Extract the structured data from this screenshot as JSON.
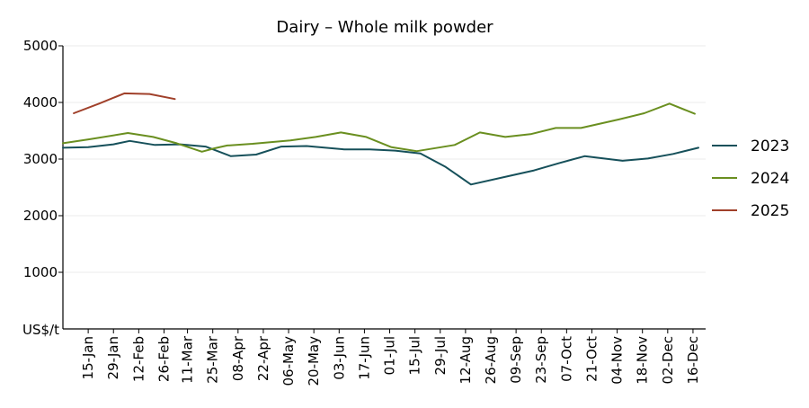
{
  "chart_data": {
    "type": "line",
    "title": "Dairy – Whole milk powder",
    "ylabel": "US$/t",
    "xlabel": "",
    "ylim": [
      0,
      5000
    ],
    "yticks": [
      1000,
      2000,
      3000,
      4000,
      5000
    ],
    "grid": true,
    "legend_position": "right",
    "x_ticks": [
      "15-Jan",
      "29-Jan",
      "12-Feb",
      "26-Feb",
      "11-Mar",
      "25-Mar",
      "08-Apr",
      "22-Apr",
      "06-May",
      "20-May",
      "03-Jun",
      "17-Jun",
      "01-Jul",
      "15-Jul",
      "29-Jul",
      "12-Aug",
      "26-Aug",
      "09-Sep",
      "23-Sep",
      "07-Oct",
      "21-Oct",
      "04-Nov",
      "18-Nov",
      "02-Dec",
      "16-Dec"
    ],
    "series": [
      {
        "name": "2023",
        "color": "#16505a",
        "points": [
          [
            "01-Jan",
            3200
          ],
          [
            "15-Jan",
            3210
          ],
          [
            "29-Jan",
            3260
          ],
          [
            "07-Feb",
            3320
          ],
          [
            "21-Feb",
            3250
          ],
          [
            "07-Mar",
            3260
          ],
          [
            "21-Mar",
            3220
          ],
          [
            "04-Apr",
            3050
          ],
          [
            "18-Apr",
            3080
          ],
          [
            "02-May",
            3220
          ],
          [
            "16-May",
            3230
          ],
          [
            "06-Jun",
            3170
          ],
          [
            "20-Jun",
            3170
          ],
          [
            "04-Jul",
            3150
          ],
          [
            "18-Jul",
            3100
          ],
          [
            "01-Aug",
            2860
          ],
          [
            "15-Aug",
            2550
          ],
          [
            "05-Sep",
            2700
          ],
          [
            "19-Sep",
            2800
          ],
          [
            "03-Oct",
            2930
          ],
          [
            "17-Oct",
            3050
          ],
          [
            "07-Nov",
            2970
          ],
          [
            "21-Nov",
            3010
          ],
          [
            "05-Dec",
            3090
          ],
          [
            "19-Dec",
            3200
          ]
        ]
      },
      {
        "name": "2024",
        "color": "#6a8f20",
        "points": [
          [
            "01-Jan",
            3280
          ],
          [
            "16-Jan",
            3350
          ],
          [
            "06-Feb",
            3460
          ],
          [
            "20-Feb",
            3390
          ],
          [
            "05-Mar",
            3280
          ],
          [
            "19-Mar",
            3130
          ],
          [
            "26-Mar",
            3190
          ],
          [
            "02-Apr",
            3240
          ],
          [
            "16-Apr",
            3270
          ],
          [
            "07-May",
            3330
          ],
          [
            "21-May",
            3390
          ],
          [
            "04-Jun",
            3470
          ],
          [
            "18-Jun",
            3390
          ],
          [
            "02-Jul",
            3210
          ],
          [
            "16-Jul",
            3140
          ],
          [
            "06-Aug",
            3250
          ],
          [
            "20-Aug",
            3470
          ],
          [
            "03-Sep",
            3390
          ],
          [
            "17-Sep",
            3440
          ],
          [
            "01-Oct",
            3550
          ],
          [
            "15-Oct",
            3550
          ],
          [
            "05-Nov",
            3700
          ],
          [
            "19-Nov",
            3810
          ],
          [
            "03-Dec",
            3980
          ],
          [
            "17-Dec",
            3800
          ]
        ]
      },
      {
        "name": "2025",
        "color": "#a0402a",
        "points": [
          [
            "07-Jan",
            3810
          ],
          [
            "21-Jan",
            3980
          ],
          [
            "04-Feb",
            4160
          ],
          [
            "18-Feb",
            4150
          ],
          [
            "04-Mar",
            4060
          ]
        ]
      }
    ]
  }
}
